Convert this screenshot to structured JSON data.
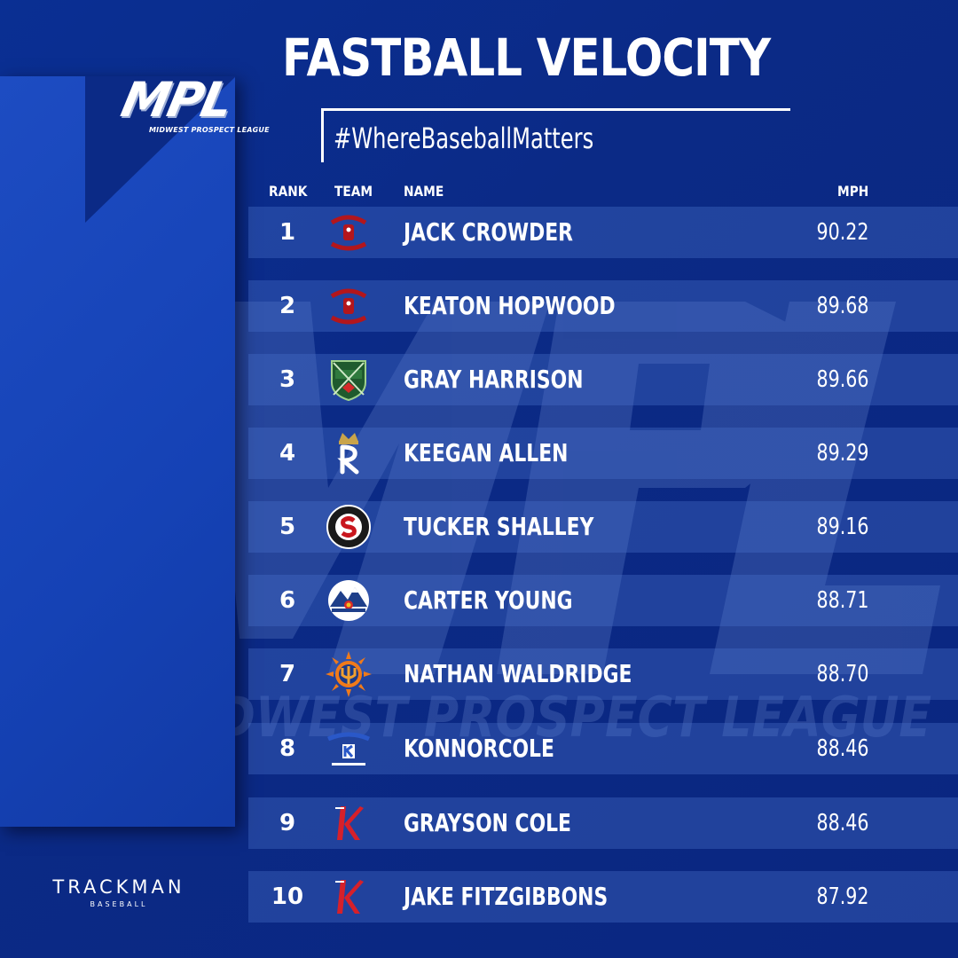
{
  "title": "FASTBALL VELOCITY",
  "hashtag": "#WhereBaseballMatters",
  "logo": {
    "text": "MPL",
    "subtitle": "MIDWEST PROSPECT LEAGUE"
  },
  "watermark": {
    "text": "MPL",
    "subtitle": "MIDWEST PROSPECT LEAGUE"
  },
  "columns": {
    "rank": "RANK",
    "team": "TEAM",
    "name": "NAME",
    "mph": "MPH"
  },
  "rows": [
    {
      "rank": "1",
      "name": "JACK CROWDER",
      "mph": "90.22",
      "team_icon": "sparks-logo-icon"
    },
    {
      "rank": "2",
      "name": "KEATON HOPWOOD",
      "mph": "89.68",
      "team_icon": "sparks-logo-icon"
    },
    {
      "rank": "3",
      "name": "GRAY HARRISON",
      "mph": "89.66",
      "team_icon": "green-shield-logo-icon"
    },
    {
      "rank": "4",
      "name": "KEEGAN ALLEN",
      "mph": "89.29",
      "team_icon": "crown-r-logo-icon"
    },
    {
      "rank": "5",
      "name": "TUCKER SHALLEY",
      "mph": "89.16",
      "team_icon": "circle-s-logo-icon"
    },
    {
      "rank": "6",
      "name": "CARTER YOUNG",
      "mph": "88.71",
      "team_icon": "mountain-logo-icon"
    },
    {
      "rank": "7",
      "name": "NATHAN WALDRIDGE",
      "mph": "88.70",
      "team_icon": "sun-trident-logo-icon"
    },
    {
      "rank": "8",
      "name": "KONNORCOLE",
      "mph": "88.46",
      "team_icon": "kentucky-logo-icon"
    },
    {
      "rank": "9",
      "name": "GRAYSON COLE",
      "mph": "88.46",
      "team_icon": "red-k-logo-icon"
    },
    {
      "rank": "10",
      "name": "JAKE FITZGIBBONS",
      "mph": "87.92",
      "team_icon": "red-k-logo-icon"
    }
  ],
  "sponsor": {
    "name": "TRACKMAN",
    "sub": "BASEBALL"
  },
  "colors": {
    "background": "#0b2a86",
    "panel": "#1542b5",
    "row": "#3f63be",
    "sparks_red": "#b3161c",
    "k_red": "#d6202a"
  }
}
